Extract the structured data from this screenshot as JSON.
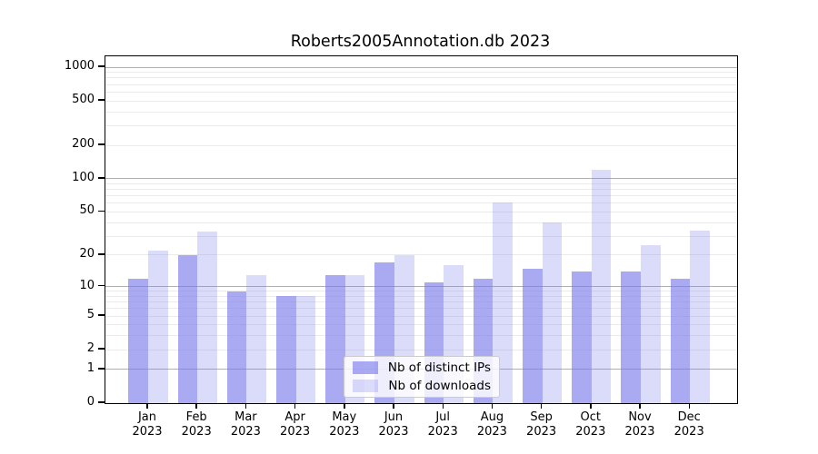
{
  "title": "Roberts2005Annotation.db 2023",
  "chart_data": {
    "type": "bar",
    "title": "Roberts2005Annotation.db 2023",
    "categories": [
      "Jan",
      "Feb",
      "Mar",
      "Apr",
      "May",
      "Jun",
      "Jul",
      "Aug",
      "Sep",
      "Oct",
      "Nov",
      "Dec"
    ],
    "year": "2023",
    "series": [
      {
        "name": "Nb of distinct IPs",
        "color": "#7979ec",
        "alpha": 0.63,
        "values": [
          12,
          20,
          9,
          8,
          13,
          17,
          11,
          12,
          15,
          14,
          14,
          12
        ]
      },
      {
        "name": "Nb of downloads",
        "color": "#7979ec",
        "alpha": 0.27,
        "values": [
          22,
          33,
          13,
          8,
          13,
          20,
          16,
          61,
          40,
          120,
          25,
          34
        ]
      }
    ],
    "yticks": [
      0,
      1,
      2,
      5,
      10,
      20,
      50,
      100,
      200,
      500,
      1000
    ],
    "yscale": "log1p",
    "ylim": [
      0,
      1250
    ],
    "xlabel": "",
    "ylabel": "",
    "grid": true,
    "legend_position": "lower center"
  },
  "colors": {
    "axis": "#000000",
    "major_grid": "#b0b0b0",
    "minor_grid": "#ebebeb",
    "legend_border": "#cccccc"
  }
}
